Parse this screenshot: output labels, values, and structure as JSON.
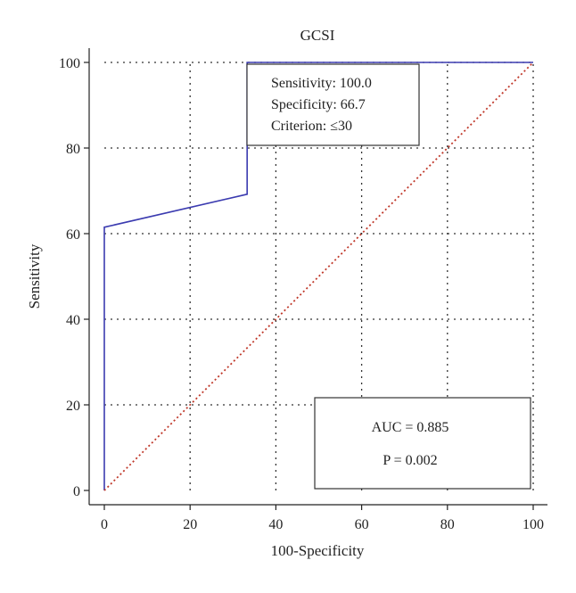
{
  "chart_data": {
    "type": "line",
    "title": "GCSI",
    "xlabel": "100-Specificity",
    "ylabel": "Sensitivity",
    "xlim": [
      0,
      100
    ],
    "ylim": [
      0,
      100
    ],
    "xticks": [
      0,
      20,
      40,
      60,
      80,
      100
    ],
    "yticks": [
      0,
      20,
      40,
      60,
      80,
      100
    ],
    "grid": true,
    "series": [
      {
        "role": "roc-curve",
        "color": "#3b3bb0",
        "style": "solid",
        "x": [
          0,
          0,
          33.3,
          33.3,
          100
        ],
        "y": [
          0,
          61.5,
          69.2,
          100,
          100
        ]
      },
      {
        "role": "reference-diagonal",
        "color": "#c0392b",
        "style": "dotted",
        "x": [
          0,
          100
        ],
        "y": [
          0,
          100
        ]
      }
    ],
    "annotations": {
      "criterion_box": {
        "lines": [
          "Sensitivity: 100.0",
          "Specificity: 66.7",
          "Criterion: ≤30"
        ]
      },
      "auc_box": {
        "lines": [
          "AUC = 0.885",
          "P = 0.002"
        ]
      }
    }
  }
}
